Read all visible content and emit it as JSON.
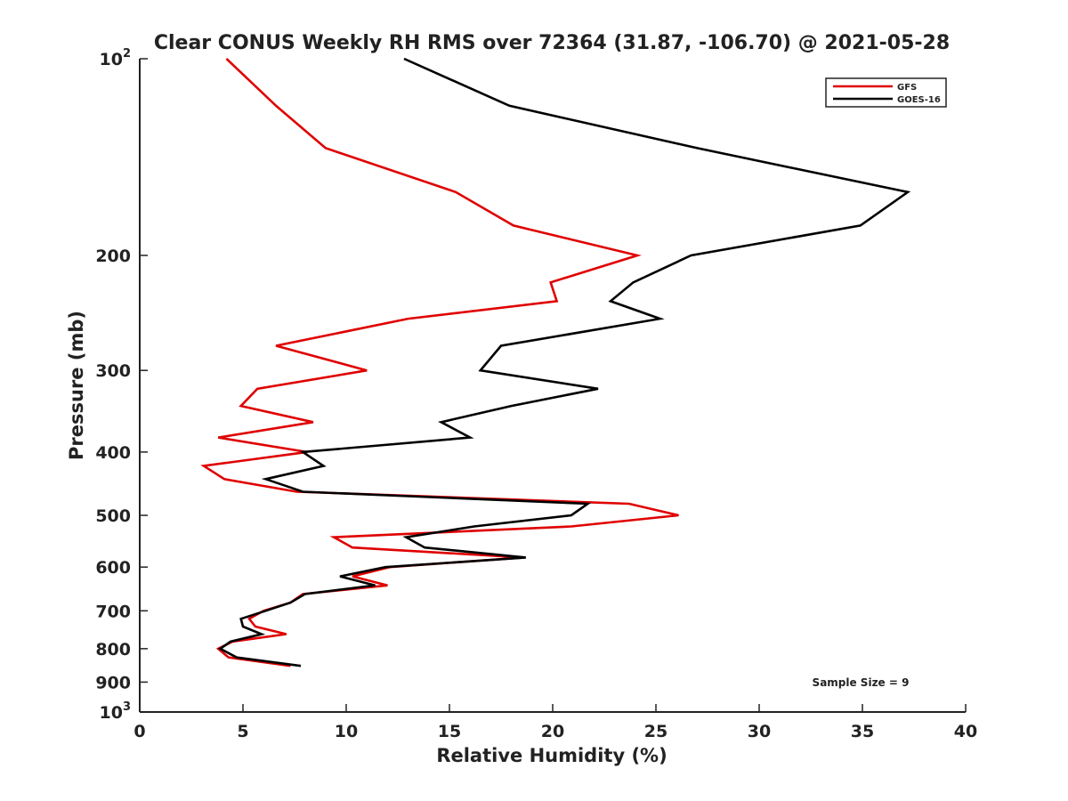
{
  "chart_data": {
    "type": "line",
    "title": "Clear CONUS Weekly RH RMS over 72364 (31.87, -106.70) @ 2021-05-28",
    "xlabel": "Relative Humidity (%)",
    "ylabel": "Pressure (mb)",
    "xlim": [
      0,
      40
    ],
    "ylim": [
      100,
      1000
    ],
    "y_scale": "log",
    "y_reversed": true,
    "grid": false,
    "legend_position": "top-right",
    "x_ticks": [
      "0",
      "5",
      "10",
      "15",
      "20",
      "25",
      "30",
      "35",
      "40"
    ],
    "y_ticks": [
      {
        "value": 100,
        "base": "10",
        "exp": "2"
      },
      {
        "value": 200,
        "label": "200"
      },
      {
        "value": 300,
        "label": "300"
      },
      {
        "value": 400,
        "label": "400"
      },
      {
        "value": 500,
        "label": "500"
      },
      {
        "value": 600,
        "label": "600"
      },
      {
        "value": 700,
        "label": "700"
      },
      {
        "value": 800,
        "label": "800"
      },
      {
        "value": 900,
        "label": "900"
      },
      {
        "value": 1000,
        "base": "10",
        "exp": "3"
      }
    ],
    "annotation": "Sample Size = 9",
    "series": [
      {
        "name": "GFS",
        "color": "#e00000",
        "points": [
          {
            "p": 100,
            "rh": 4.2
          },
          {
            "p": 118,
            "rh": 6.6
          },
          {
            "p": 137,
            "rh": 9.0
          },
          {
            "p": 160,
            "rh": 15.3
          },
          {
            "p": 180,
            "rh": 18.1
          },
          {
            "p": 200,
            "rh": 24.1
          },
          {
            "p": 220,
            "rh": 19.9
          },
          {
            "p": 235,
            "rh": 20.2
          },
          {
            "p": 250,
            "rh": 13.0
          },
          {
            "p": 275,
            "rh": 6.6
          },
          {
            "p": 300,
            "rh": 11.0
          },
          {
            "p": 320,
            "rh": 5.7
          },
          {
            "p": 340,
            "rh": 4.9
          },
          {
            "p": 360,
            "rh": 8.4
          },
          {
            "p": 380,
            "rh": 3.8
          },
          {
            "p": 400,
            "rh": 8.1
          },
          {
            "p": 420,
            "rh": 3.1
          },
          {
            "p": 440,
            "rh": 4.1
          },
          {
            "p": 460,
            "rh": 7.6
          },
          {
            "p": 480,
            "rh": 23.7
          },
          {
            "p": 500,
            "rh": 26.1
          },
          {
            "p": 520,
            "rh": 20.9
          },
          {
            "p": 540,
            "rh": 9.4
          },
          {
            "p": 560,
            "rh": 10.3
          },
          {
            "p": 580,
            "rh": 18.6
          },
          {
            "p": 600,
            "rh": 12.1
          },
          {
            "p": 620,
            "rh": 10.3
          },
          {
            "p": 640,
            "rh": 12.0
          },
          {
            "p": 660,
            "rh": 7.9
          },
          {
            "p": 680,
            "rh": 7.3
          },
          {
            "p": 700,
            "rh": 6.0
          },
          {
            "p": 720,
            "rh": 5.3
          },
          {
            "p": 740,
            "rh": 5.6
          },
          {
            "p": 760,
            "rh": 7.1
          },
          {
            "p": 780,
            "rh": 4.5
          },
          {
            "p": 800,
            "rh": 3.8
          },
          {
            "p": 825,
            "rh": 4.3
          },
          {
            "p": 850,
            "rh": 7.3
          }
        ]
      },
      {
        "name": "GOES-16",
        "color": "#000000",
        "points": [
          {
            "p": 100,
            "rh": 12.8
          },
          {
            "p": 118,
            "rh": 17.9
          },
          {
            "p": 137,
            "rh": 27.0
          },
          {
            "p": 160,
            "rh": 37.2
          },
          {
            "p": 180,
            "rh": 34.9
          },
          {
            "p": 200,
            "rh": 26.7
          },
          {
            "p": 220,
            "rh": 23.9
          },
          {
            "p": 235,
            "rh": 22.8
          },
          {
            "p": 250,
            "rh": 25.2
          },
          {
            "p": 275,
            "rh": 17.5
          },
          {
            "p": 300,
            "rh": 16.5
          },
          {
            "p": 320,
            "rh": 22.2
          },
          {
            "p": 340,
            "rh": 18.0
          },
          {
            "p": 360,
            "rh": 14.6
          },
          {
            "p": 380,
            "rh": 16.0
          },
          {
            "p": 400,
            "rh": 7.9
          },
          {
            "p": 420,
            "rh": 8.9
          },
          {
            "p": 440,
            "rh": 6.1
          },
          {
            "p": 460,
            "rh": 7.9
          },
          {
            "p": 480,
            "rh": 21.7
          },
          {
            "p": 500,
            "rh": 20.9
          },
          {
            "p": 520,
            "rh": 16.2
          },
          {
            "p": 540,
            "rh": 12.9
          },
          {
            "p": 560,
            "rh": 13.8
          },
          {
            "p": 580,
            "rh": 18.7
          },
          {
            "p": 600,
            "rh": 11.9
          },
          {
            "p": 620,
            "rh": 9.7
          },
          {
            "p": 640,
            "rh": 11.4
          },
          {
            "p": 660,
            "rh": 8.0
          },
          {
            "p": 680,
            "rh": 7.3
          },
          {
            "p": 700,
            "rh": 6.1
          },
          {
            "p": 720,
            "rh": 4.9
          },
          {
            "p": 740,
            "rh": 5.0
          },
          {
            "p": 760,
            "rh": 5.9
          },
          {
            "p": 780,
            "rh": 4.4
          },
          {
            "p": 800,
            "rh": 3.9
          },
          {
            "p": 825,
            "rh": 4.7
          },
          {
            "p": 850,
            "rh": 7.8
          }
        ]
      }
    ]
  }
}
